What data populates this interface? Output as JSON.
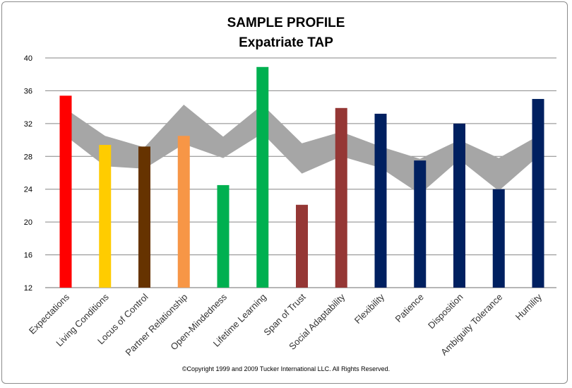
{
  "title": "SAMPLE PROFILE",
  "subtitle": "Expatriate TAP",
  "copyright": "©Copyright 1999 and 2009 Tucker International LLC. All Rights Reserved.",
  "chart_data": {
    "type": "bar",
    "title": "SAMPLE PROFILE",
    "subtitle": "Expatriate TAP",
    "xlabel": "",
    "ylabel": "",
    "ylim": [
      12,
      40
    ],
    "yticks": [
      12,
      16,
      20,
      24,
      28,
      32,
      36,
      40
    ],
    "grid": true,
    "categories": [
      "Expectations",
      "Living Conditions",
      "Locus of Control",
      "Partner Relationship",
      "Open-Mindedness",
      "Lifetime Learning",
      "Span of Trust",
      "Social Adaptability",
      "Flexibility",
      "Patience",
      "Disposition",
      "Ambiguity Tolerance",
      "Humility"
    ],
    "values": [
      35.4,
      29.4,
      29.2,
      30.5,
      24.5,
      38.9,
      22.1,
      33.9,
      33.2,
      27.5,
      32.0,
      24.0,
      35.0
    ],
    "colors": [
      "#ff0000",
      "#ffcc00",
      "#663300",
      "#f79646",
      "#00b050",
      "#00b050",
      "#953735",
      "#953735",
      "#002060",
      "#002060",
      "#002060",
      "#002060",
      "#002060"
    ],
    "band": {
      "color": "#a6a6a6",
      "upper": [
        33.8,
        30.5,
        29.1,
        34.3,
        30.4,
        34.3,
        29.6,
        31.0,
        29.2,
        27.7,
        30.0,
        27.8,
        30.5
      ],
      "lower": [
        30.5,
        26.8,
        26.5,
        29.5,
        27.8,
        30.8,
        25.9,
        28.0,
        26.6,
        23.4,
        27.6,
        23.8,
        28.0
      ]
    }
  }
}
